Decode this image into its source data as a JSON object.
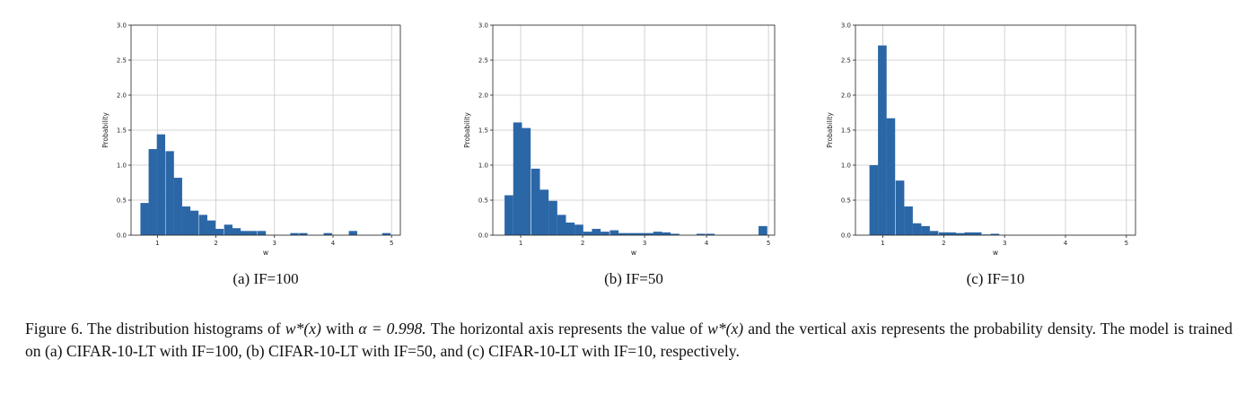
{
  "subplots": [
    {
      "caption": "(a) IF=100"
    },
    {
      "caption": "(b) IF=50"
    },
    {
      "caption": "(c) IF=10"
    }
  ],
  "caption": {
    "label": "Figure 6.",
    "seg1": "The distribution histograms of",
    "math1": "w*(x)",
    "seg2": "with",
    "math2": "α = 0.998.",
    "seg3": "The horizontal axis represents the value of",
    "math3": "w*(x)",
    "seg4": "and the vertical axis represents the probability density. The model is trained on (a) CIFAR-10-LT with IF=100, (b) CIFAR-10-LT with IF=50, and (c) CIFAR-10-LT with IF=10, respectively."
  },
  "colors": {
    "bar": "#2b67a6",
    "grid": "#c8c8c8",
    "axis": "#222222"
  },
  "chart_data": [
    {
      "type": "bar",
      "xlabel": "w",
      "ylabel": "Probability",
      "xlim": [
        0.55,
        5.15
      ],
      "ylim": [
        0,
        3.0
      ],
      "xticks": [
        1,
        2,
        3,
        4,
        5
      ],
      "yticks": [
        "0.0",
        "0.5",
        "1.0",
        "1.5",
        "2.0",
        "2.5",
        "3.0"
      ],
      "grid": true,
      "bin_width": 0.143,
      "bin_starts": [
        0.71,
        0.85,
        0.99,
        1.14,
        1.28,
        1.42,
        1.56,
        1.71,
        1.85,
        1.99,
        2.14,
        2.28,
        2.42,
        2.56,
        2.71,
        3.27,
        3.42,
        3.84,
        4.27,
        4.84
      ],
      "values": [
        0.46,
        1.23,
        1.44,
        1.2,
        0.82,
        0.41,
        0.35,
        0.29,
        0.21,
        0.09,
        0.15,
        0.1,
        0.06,
        0.06,
        0.06,
        0.03,
        0.03,
        0.03,
        0.06,
        0.03
      ]
    },
    {
      "type": "bar",
      "xlabel": "w",
      "ylabel": "Probability",
      "xlim": [
        0.55,
        5.1
      ],
      "ylim": [
        0,
        3.0
      ],
      "xticks": [
        1,
        2,
        3,
        4,
        5
      ],
      "yticks": [
        "0.0",
        "0.5",
        "1.0",
        "1.5",
        "2.0",
        "2.5",
        "3.0"
      ],
      "grid": true,
      "bin_width": 0.141,
      "bin_starts": [
        0.74,
        0.88,
        1.02,
        1.17,
        1.31,
        1.45,
        1.59,
        1.73,
        1.87,
        2.01,
        2.15,
        2.29,
        2.44,
        2.58,
        2.72,
        2.86,
        3.0,
        3.14,
        3.28,
        3.42,
        3.84,
        3.99,
        4.84
      ],
      "values": [
        0.57,
        1.61,
        1.53,
        0.95,
        0.65,
        0.49,
        0.29,
        0.18,
        0.15,
        0.05,
        0.09,
        0.05,
        0.07,
        0.03,
        0.03,
        0.03,
        0.03,
        0.05,
        0.04,
        0.02,
        0.02,
        0.02,
        0.13
      ]
    },
    {
      "type": "bar",
      "xlabel": "w",
      "ylabel": "Probability",
      "xlim": [
        0.55,
        5.15
      ],
      "ylim": [
        0,
        3.0
      ],
      "xticks": [
        1,
        2,
        3,
        4,
        5
      ],
      "yticks": [
        "0.0",
        "0.5",
        "1.0",
        "1.5",
        "2.0",
        "2.5",
        "3.0"
      ],
      "grid": true,
      "bin_width": 0.142,
      "bin_starts": [
        0.78,
        0.92,
        1.06,
        1.21,
        1.35,
        1.49,
        1.63,
        1.77,
        1.92,
        2.06,
        2.2,
        2.34,
        2.48,
        2.63,
        2.77
      ],
      "values": [
        1.0,
        2.71,
        1.67,
        0.78,
        0.41,
        0.17,
        0.13,
        0.06,
        0.04,
        0.04,
        0.03,
        0.04,
        0.04,
        0.01,
        0.02
      ]
    }
  ]
}
